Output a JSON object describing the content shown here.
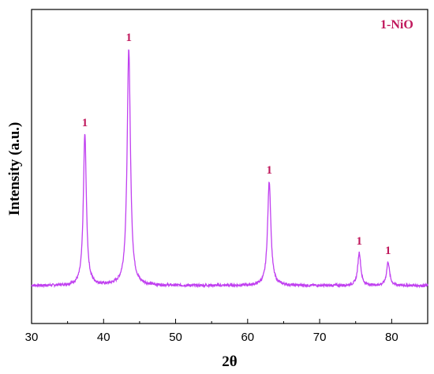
{
  "chart_data": {
    "type": "line",
    "title": "",
    "xlabel": "2θ",
    "ylabel": "Intensity (a.u.)",
    "xlim": [
      30,
      85
    ],
    "x_ticks": [
      30,
      40,
      50,
      60,
      70,
      80
    ],
    "y_ticks_shown": false,
    "grid": false,
    "legend": {
      "text": "1-NiO",
      "placement": "top-right"
    },
    "series": [
      {
        "name": "1-NiO",
        "color": "#c040f0",
        "baseline": 0,
        "peaks": [
          {
            "x": 37.4,
            "y": 64,
            "width": 0.5,
            "label": "1"
          },
          {
            "x": 43.5,
            "y": 100,
            "width": 0.55,
            "label": "1"
          },
          {
            "x": 63.0,
            "y": 44,
            "width": 0.55,
            "label": "1"
          },
          {
            "x": 75.5,
            "y": 14,
            "width": 0.5,
            "label": "1"
          },
          {
            "x": 79.5,
            "y": 10,
            "width": 0.5,
            "label": "1"
          }
        ]
      }
    ],
    "label_color": "#c0185c"
  }
}
